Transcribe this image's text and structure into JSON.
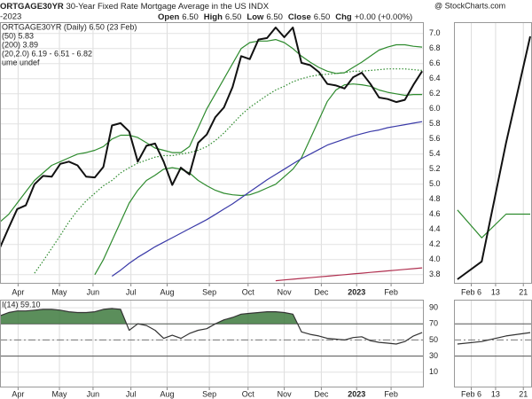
{
  "header": {
    "symbol": "ORTGAGE30YR",
    "name": "30-Year Fixed Rate Mortgage Average in the US",
    "exchange": "INDX",
    "source": "@ StockCharts.com",
    "date": "-2023",
    "quote": [
      {
        "label": "Open",
        "value": "6.50"
      },
      {
        "label": "High",
        "value": "6.50"
      },
      {
        "label": "Low",
        "value": "6.50"
      },
      {
        "label": "Close",
        "value": "6.50"
      },
      {
        "label": "Chg",
        "value": "+0.00 (+0.00%)"
      }
    ]
  },
  "chart_data": [
    {
      "type": "line",
      "notes": [
        "ume undef"
      ],
      "x": [
        0,
        1,
        2,
        3,
        4,
        5,
        6,
        7,
        8,
        9,
        10,
        11,
        12,
        13,
        14,
        15,
        16,
        17,
        18,
        19,
        20,
        21,
        22,
        23,
        24,
        25,
        26,
        27,
        28,
        29,
        30,
        31,
        32,
        33,
        34,
        35,
        36,
        37,
        38,
        39,
        40,
        41,
        42,
        43,
        44,
        45,
        46,
        47,
        48,
        49
      ],
      "xlim": [
        0,
        49.2
      ],
      "xticks": [
        {
          "value": 2.1,
          "label": "Apr"
        },
        {
          "value": 6.9,
          "label": "May"
        },
        {
          "value": 10.8,
          "label": "Jun"
        },
        {
          "value": 15.2,
          "label": "Jul"
        },
        {
          "value": 19.4,
          "label": "Aug"
        },
        {
          "value": 24.3,
          "label": "Sep"
        },
        {
          "value": 28.8,
          "label": "Oct"
        },
        {
          "value": 33,
          "label": "Nov"
        },
        {
          "value": 37.3,
          "label": "Dec"
        },
        {
          "value": 41.4,
          "label": "2023",
          "bold": true
        },
        {
          "value": 45.4,
          "label": "Feb"
        }
      ],
      "ylim": [
        3.68,
        7.15
      ],
      "yticks": [
        3.8,
        {
          "value": 4,
          "label": "4.0"
        },
        4.2,
        4.4,
        4.6,
        4.8,
        {
          "value": 5,
          "label": "5.0"
        },
        5.2,
        5.4,
        5.6,
        5.8,
        {
          "value": 6,
          "label": "6.0"
        },
        6.2,
        6.4,
        6.6,
        6.8,
        {
          "value": 7,
          "label": "7.0"
        }
      ],
      "grid": true,
      "series": [
        {
          "name": "(20,2.0) 6.19 - 6.51 - 6.82",
          "color": "#2e8b2e",
          "values": [
            4.5,
            4.6,
            4.75,
            4.9,
            5.05,
            5.15,
            5.25,
            5.3,
            5.35,
            5.4,
            5.42,
            5.45,
            5.5,
            5.6,
            5.65,
            5.65,
            5.62,
            5.55,
            5.48,
            5.45,
            5.42,
            5.42,
            5.5,
            5.75,
            6.0,
            6.2,
            6.4,
            6.6,
            6.8,
            6.88,
            6.9,
            6.9,
            6.92,
            6.88,
            6.8,
            6.7,
            6.62,
            6.55,
            6.5,
            6.47,
            6.48,
            6.55,
            6.62,
            6.7,
            6.78,
            6.82,
            6.85,
            6.85,
            6.83,
            6.82
          ]
        },
        {
          "color": "#2e8b2e",
          "dotted": true,
          "values": [
            null,
            null,
            null,
            null,
            3.82,
            3.98,
            4.15,
            4.32,
            4.5,
            4.65,
            4.78,
            4.88,
            4.98,
            5.05,
            5.15,
            5.22,
            5.28,
            5.32,
            5.36,
            5.38,
            5.38,
            5.4,
            5.42,
            5.45,
            5.5,
            5.58,
            5.68,
            5.8,
            5.92,
            6.02,
            6.1,
            6.18,
            6.25,
            6.3,
            6.36,
            6.4,
            6.43,
            6.45,
            6.46,
            6.47,
            6.48,
            6.5,
            6.5,
            6.51,
            6.52,
            6.53,
            6.53,
            6.53,
            6.52,
            6.51
          ]
        },
        {
          "color": "#2e8b2e",
          "values": [
            null,
            null,
            null,
            null,
            null,
            null,
            null,
            null,
            null,
            null,
            null,
            3.8,
            4.0,
            4.25,
            4.5,
            4.75,
            4.92,
            5.05,
            5.12,
            5.2,
            5.22,
            5.2,
            5.15,
            5.05,
            4.98,
            4.92,
            4.88,
            4.86,
            4.85,
            4.86,
            4.9,
            4.95,
            5.0,
            5.1,
            5.2,
            5.35,
            5.6,
            5.85,
            6.1,
            6.25,
            6.32,
            6.33,
            6.32,
            6.3,
            6.25,
            6.22,
            6.2,
            6.18,
            6.19,
            6.19
          ]
        },
        {
          "name": "(50) 5.83",
          "color": "#3a3aa8",
          "values": [
            null,
            null,
            null,
            null,
            null,
            null,
            null,
            null,
            null,
            null,
            null,
            null,
            null,
            3.78,
            3.86,
            3.95,
            4.03,
            4.1,
            4.17,
            4.23,
            4.29,
            4.35,
            4.41,
            4.47,
            4.53,
            4.6,
            4.67,
            4.74,
            4.82,
            4.9,
            4.98,
            5.06,
            5.13,
            5.2,
            5.27,
            5.34,
            5.4,
            5.46,
            5.52,
            5.56,
            5.6,
            5.64,
            5.67,
            5.7,
            5.72,
            5.75,
            5.77,
            5.79,
            5.81,
            5.83
          ]
        },
        {
          "name": "(200) 3.89",
          "color": "#b03050",
          "values": [
            null,
            null,
            null,
            null,
            null,
            null,
            null,
            null,
            null,
            null,
            null,
            null,
            null,
            null,
            null,
            null,
            null,
            null,
            null,
            null,
            null,
            null,
            null,
            null,
            null,
            null,
            null,
            null,
            null,
            null,
            null,
            null,
            3.72,
            3.73,
            3.74,
            3.75,
            3.76,
            3.77,
            3.78,
            3.79,
            3.8,
            3.81,
            3.82,
            3.83,
            3.84,
            3.85,
            3.86,
            3.87,
            3.88,
            3.89
          ]
        },
        {
          "name": "ORTGAGE30YR (Daily) 6.50 (23 Feb)",
          "color": "#111111",
          "width": 2,
          "values": [
            4.16,
            4.42,
            4.67,
            4.72,
            5.0,
            5.11,
            5.1,
            5.27,
            5.3,
            5.25,
            5.1,
            5.09,
            5.23,
            5.78,
            5.81,
            5.7,
            5.3,
            5.51,
            5.54,
            5.3,
            4.99,
            5.22,
            5.13,
            5.55,
            5.66,
            5.89,
            6.02,
            6.29,
            6.7,
            6.66,
            6.92,
            6.94,
            7.08,
            6.95,
            7.08,
            6.61,
            6.58,
            6.49,
            6.33,
            6.31,
            6.27,
            6.42,
            6.48,
            6.33,
            6.15,
            6.13,
            6.09,
            6.12,
            6.32,
            6.5
          ]
        }
      ]
    },
    {
      "type": "line",
      "title": "I(14) 59.10",
      "x": [
        0,
        1,
        2,
        3,
        4,
        5,
        6,
        7,
        8,
        9,
        10,
        11,
        12,
        13,
        14,
        15,
        16,
        17,
        18,
        19,
        20,
        21,
        22,
        23,
        24,
        25,
        26,
        27,
        28,
        29,
        30,
        31,
        32,
        33,
        34,
        35,
        36,
        37,
        38,
        39,
        40,
        41,
        42,
        43,
        44,
        45,
        46,
        47,
        48,
        49
      ],
      "xlim": [
        0,
        49.2
      ],
      "xticks": [
        {
          "value": 2.1,
          "label": "Apr"
        },
        {
          "value": 6.9,
          "label": "May"
        },
        {
          "value": 10.8,
          "label": "Jun"
        },
        {
          "value": 15.2,
          "label": "Jul"
        },
        {
          "value": 19.4,
          "label": "Aug"
        },
        {
          "value": 24.3,
          "label": "Sep"
        },
        {
          "value": 28.8,
          "label": "Oct"
        },
        {
          "value": 33,
          "label": "Nov"
        },
        {
          "value": 37.3,
          "label": "Dec"
        },
        {
          "value": 41.4,
          "label": "2023",
          "bold": true
        },
        {
          "value": 45.4,
          "label": "Feb"
        }
      ],
      "ylim": [
        -9,
        100
      ],
      "yticks": [
        10,
        30,
        50,
        70,
        90
      ],
      "grid": true,
      "reference_lines": [
        30,
        50,
        70
      ],
      "fill_above": 70,
      "fill_color": "#3e7a3e",
      "series": [
        {
          "color": "#333333",
          "values": [
            80,
            84,
            86,
            86,
            87,
            88,
            88,
            87,
            85,
            84,
            84,
            85,
            88,
            89,
            88,
            62,
            70,
            68,
            62,
            52,
            56,
            52,
            58,
            62,
            64,
            70,
            75,
            78,
            82,
            83,
            84,
            85,
            85,
            84,
            82,
            60,
            57,
            55,
            52,
            51,
            50,
            53,
            54,
            49,
            47,
            46,
            45,
            48,
            55,
            59.1
          ]
        }
      ]
    },
    {
      "type": "line",
      "x": [
        2,
        9,
        16,
        23
      ],
      "xlim": [
        1,
        23.5
      ],
      "xticks": [
        {
          "value": 6,
          "label": "Feb 6"
        },
        13,
        21
      ],
      "ylim": [
        6.0825,
        6.524
      ],
      "grid": true,
      "series": [
        {
          "color": "#2e8b2e",
          "values": [
            6.207,
            6.16,
            6.2,
            6.2
          ]
        },
        {
          "color": "#111111",
          "width": 2,
          "values": [
            6.09,
            6.12,
            6.32,
            6.5
          ]
        }
      ]
    },
    {
      "type": "line",
      "x": [
        2,
        9,
        16,
        23
      ],
      "xlim": [
        1,
        23.5
      ],
      "xticks": [
        {
          "value": 6,
          "label": "Feb 6"
        },
        13,
        21
      ],
      "ylim": [
        -9,
        100
      ],
      "reference_lines": [
        30,
        50,
        70
      ],
      "grid": true,
      "series": [
        {
          "color": "#333333",
          "values": [
            45,
            48,
            55,
            59.1
          ]
        }
      ]
    }
  ]
}
